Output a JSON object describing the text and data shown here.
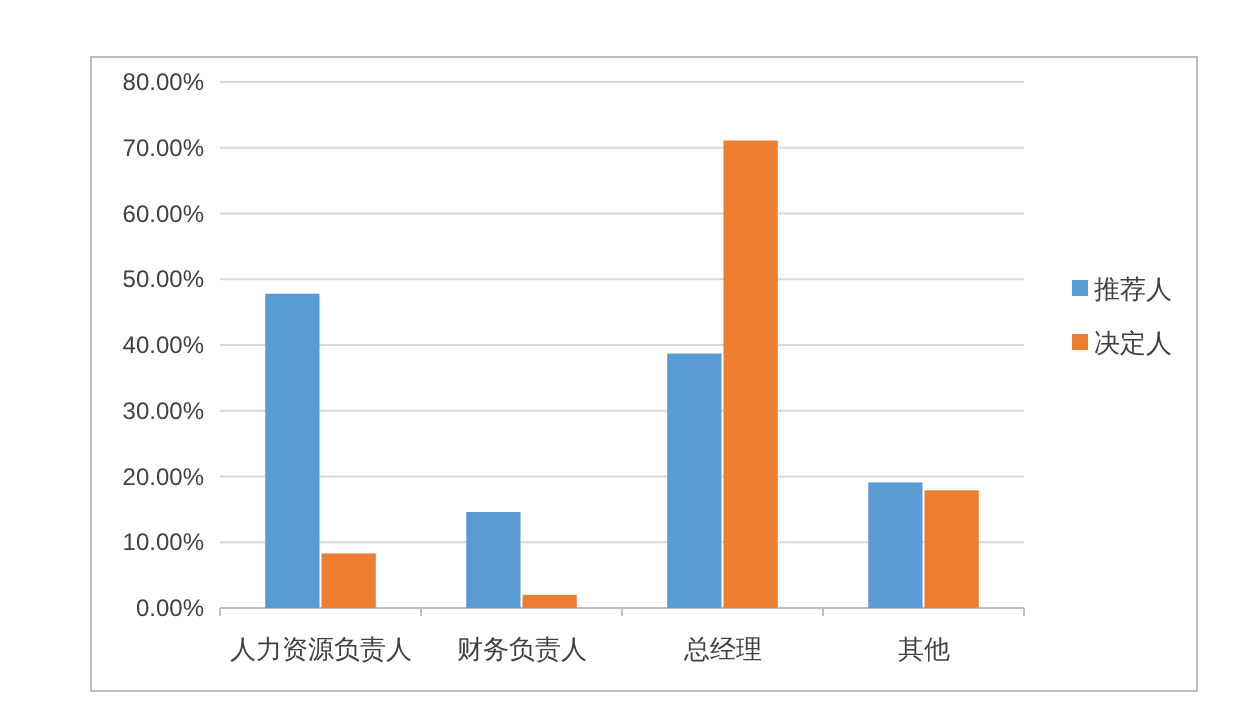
{
  "chart_data": {
    "type": "bar",
    "categories": [
      "人力资源负责人",
      "财务负责人",
      "总经理",
      "其他"
    ],
    "series": [
      {
        "name": "推荐人",
        "color": "#5b9bd5",
        "values": [
          47.8,
          14.6,
          38.7,
          19.1
        ]
      },
      {
        "name": "决定人",
        "color": "#ed7d31",
        "values": [
          8.3,
          2.0,
          71.1,
          17.9
        ]
      }
    ],
    "ylim": [
      0,
      80
    ],
    "yticks": [
      {
        "value": 0,
        "label": "0.00%"
      },
      {
        "value": 10,
        "label": "10.00%"
      },
      {
        "value": 20,
        "label": "20.00%"
      },
      {
        "value": 30,
        "label": "30.00%"
      },
      {
        "value": 40,
        "label": "40.00%"
      },
      {
        "value": 50,
        "label": "50.00%"
      },
      {
        "value": 60,
        "label": "60.00%"
      },
      {
        "value": 70,
        "label": "70.00%"
      },
      {
        "value": 80,
        "label": "80.00%"
      }
    ],
    "grid": "y",
    "legend": "right"
  }
}
